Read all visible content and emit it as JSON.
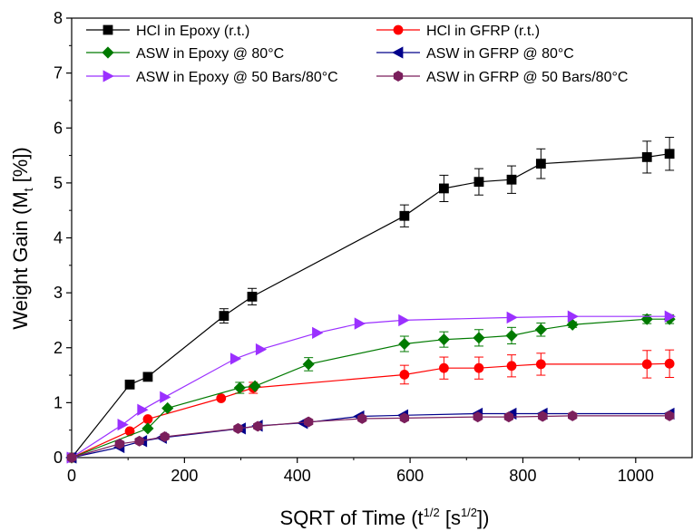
{
  "chart_data": {
    "type": "line",
    "xlabel": {
      "main": "SQRT of Time (t",
      "sup1": "1/2",
      "mid": " [s",
      "sup2": "1/2",
      "end": "])"
    },
    "ylabel": {
      "main": "Weight Gain (M",
      "sub": "t",
      "end": " [%])"
    },
    "xlim": [
      0,
      1100
    ],
    "ylim": [
      0,
      8
    ],
    "xticks": [
      "0",
      "200",
      "400",
      "600",
      "800",
      "1000"
    ],
    "yticks": [
      "0",
      "1",
      "2",
      "3",
      "4",
      "5",
      "6",
      "7",
      "8"
    ],
    "legend_position": "top",
    "grid": false,
    "series": [
      {
        "name": "HCl in Epoxy (r.t.)",
        "color": "#000000",
        "marker": "square",
        "x": [
          0,
          103,
          135,
          270,
          320,
          590,
          660,
          722,
          780,
          832,
          1020,
          1060
        ],
        "y": [
          0,
          1.33,
          1.47,
          2.58,
          2.93,
          4.4,
          4.9,
          5.02,
          5.06,
          5.35,
          5.47,
          5.53
        ],
        "err": [
          0,
          0,
          0,
          0.13,
          0.15,
          0.2,
          0.24,
          0.24,
          0.25,
          0.27,
          0.29,
          0.3
        ]
      },
      {
        "name": "HCl in GFRP (r.t.)",
        "color": "#ff0000",
        "marker": "circle",
        "x": [
          0,
          103,
          135,
          265,
          322,
          590,
          660,
          722,
          780,
          832,
          1020,
          1060
        ],
        "y": [
          0,
          0.48,
          0.7,
          1.08,
          1.27,
          1.51,
          1.63,
          1.63,
          1.67,
          1.7,
          1.7,
          1.71
        ],
        "err": [
          0,
          0,
          0,
          0,
          0.1,
          0.17,
          0.2,
          0.2,
          0.2,
          0.2,
          0.25,
          0.25
        ]
      },
      {
        "name": "ASW in Epoxy @ 80°C",
        "color": "#007a00",
        "marker": "diamond",
        "x": [
          0,
          135,
          170,
          298,
          325,
          420,
          590,
          660,
          722,
          780,
          832,
          888,
          1020,
          1060
        ],
        "y": [
          0,
          0.53,
          0.9,
          1.27,
          1.3,
          1.7,
          2.07,
          2.15,
          2.18,
          2.22,
          2.33,
          2.42,
          2.52,
          2.52
        ],
        "err": [
          0,
          0,
          0,
          0.1,
          0,
          0.12,
          0.14,
          0.14,
          0.15,
          0.15,
          0.12,
          0.05,
          0.08,
          0.08
        ]
      },
      {
        "name": "ASW in GFRP @ 80°C",
        "color": "#00008b",
        "marker": "triangle-left",
        "x": [
          0,
          85,
          125,
          160,
          300,
          330,
          410,
          510,
          588,
          720,
          780,
          835,
          1060
        ],
        "y": [
          0,
          0.19,
          0.3,
          0.36,
          0.53,
          0.58,
          0.63,
          0.75,
          0.77,
          0.8,
          0.8,
          0.8,
          0.8
        ],
        "err": [
          0,
          0,
          0,
          0,
          0,
          0,
          0,
          0,
          0,
          0,
          0,
          0,
          0
        ]
      },
      {
        "name": "ASW in Epoxy @ 50 Bars/80°C",
        "color": "#9b30ff",
        "marker": "triangle-right",
        "x": [
          0,
          90,
          125,
          165,
          290,
          335,
          435,
          510,
          588,
          780,
          888,
          1060
        ],
        "y": [
          0,
          0.6,
          0.87,
          1.1,
          1.8,
          1.97,
          2.27,
          2.44,
          2.5,
          2.55,
          2.57,
          2.57
        ],
        "err": [
          0,
          0,
          0,
          0,
          0,
          0,
          0,
          0,
          0,
          0,
          0,
          0
        ]
      },
      {
        "name": "ASW in GFRP @ 50 Bars/80°C",
        "color": "#7a1f5c",
        "marker": "hexagon",
        "x": [
          0,
          85,
          120,
          165,
          295,
          330,
          420,
          515,
          590,
          720,
          775,
          835,
          888,
          1060
        ],
        "y": [
          0,
          0.25,
          0.3,
          0.38,
          0.53,
          0.57,
          0.65,
          0.71,
          0.72,
          0.74,
          0.74,
          0.75,
          0.76,
          0.76
        ],
        "err": [
          0,
          0,
          0,
          0,
          0,
          0,
          0,
          0,
          0,
          0,
          0,
          0,
          0,
          0
        ]
      }
    ]
  }
}
